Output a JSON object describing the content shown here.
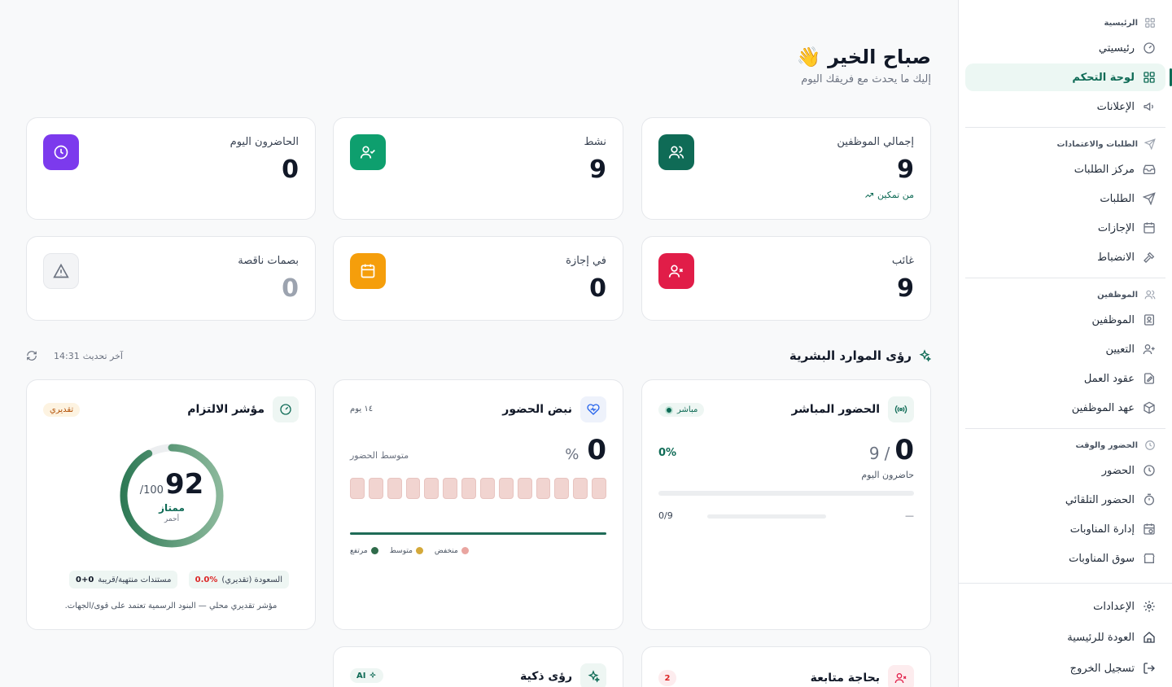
{
  "sidebar": {
    "sections": [
      {
        "title": "الرئيسية",
        "items": [
          "رئيسيتي",
          "لوحة التحكم",
          "الإعلانات"
        ]
      },
      {
        "title": "الطلبات والاعتمادات",
        "items": [
          "مركز الطلبات",
          "الطلبات",
          "الإجازات",
          "الانضباط"
        ]
      },
      {
        "title": "الموظفين",
        "items": [
          "الموظفين",
          "التعيين",
          "عقود العمل",
          "عهد الموظفين"
        ]
      },
      {
        "title": "الحضور والوقت",
        "items": [
          "الحضور",
          "الحضور التلقائي",
          "إدارة المناوبات",
          "سوق المناوبات"
        ]
      }
    ],
    "active_item": "لوحة التحكم",
    "bottom": [
      "الإعدادات",
      "العودة للرئيسية",
      "تسجيل الخروج"
    ]
  },
  "header": {
    "greeting": "صباح الخير",
    "greeting_emoji": "👋",
    "subtitle": "إليك ما يحدث مع فريقك اليوم"
  },
  "stats": [
    {
      "label": "إجمالي الموظفين",
      "value": "9",
      "trend": "من تمكين",
      "color": "#0f6b56",
      "icon": "users-icon"
    },
    {
      "label": "نشط",
      "value": "9",
      "color": "#0e9f6e",
      "icon": "user-check-icon"
    },
    {
      "label": "الحاضرون اليوم",
      "value": "0",
      "color": "#7c3aed",
      "icon": "clock-icon"
    },
    {
      "label": "غائب",
      "value": "9",
      "color": "#e11d48",
      "icon": "user-x-icon"
    },
    {
      "label": "في إجازة",
      "value": "0",
      "color": "#f59e0b",
      "icon": "calendar-icon"
    },
    {
      "label": "بصمات ناقصة",
      "value": "0",
      "color": "#f3f4f6",
      "icon": "alert-triangle-icon"
    }
  ],
  "insights": {
    "title": "رؤى الموارد البشرية",
    "last_update_label": "آخر تحديث",
    "last_update_time": "14:31"
  },
  "live_attendance": {
    "title": "الحضور المباشر",
    "badge": "مباشر",
    "present": "0",
    "total": "9",
    "separator": "/",
    "caption": "حاضرون اليوم",
    "percent": "0%",
    "progress": 0,
    "sub_ratio": "0/9",
    "sub_dash": "—"
  },
  "attendance_pulse": {
    "title": "نبض الحضور",
    "period": "١٤ يوم",
    "value": "0",
    "unit": "%",
    "caption": "متوسط الحضور",
    "days": [
      0,
      0,
      0,
      0,
      0,
      0,
      0,
      0,
      0,
      0,
      0,
      0,
      0,
      0
    ],
    "legend": [
      {
        "label": "منخفض",
        "color": "#e9a5a0"
      },
      {
        "label": "متوسط",
        "color": "#d4a93a"
      },
      {
        "label": "مرتفع",
        "color": "#2f6b4a"
      }
    ]
  },
  "compliance": {
    "title": "مؤشر الالتزام",
    "badge": "تقديري",
    "score": "92",
    "max": "/100",
    "score_value": 92,
    "rating": "ممتاز",
    "rating_sub": "أحمر",
    "chip1_label": "السعودة (تقديري)",
    "chip1_value": "0.0%",
    "chip2_label": "مستندات منتهية/قريبة",
    "chip2_value": "0+0",
    "note": "مؤشر تقديري محلي — البنود الرسمية تعتمد على قوى/الجهات."
  },
  "followup": {
    "title": "بحاجة متابعة",
    "count": "2"
  },
  "smart": {
    "title": "رؤى ذكية",
    "badge": "AI"
  },
  "colors": {
    "accent": "#0f6b56"
  }
}
